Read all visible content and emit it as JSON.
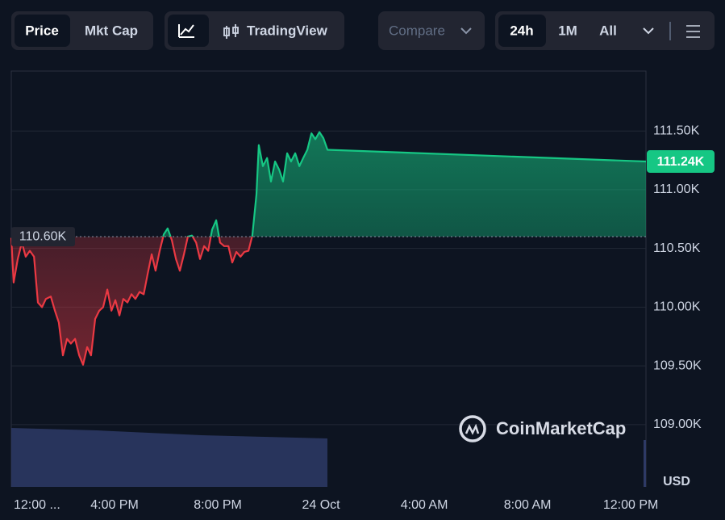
{
  "toolbar": {
    "tabs": [
      "Price",
      "Mkt Cap"
    ],
    "view": "TradingView",
    "compare": "Compare",
    "ranges": [
      "24h",
      "1M",
      "All"
    ]
  },
  "chart_data": {
    "type": "line",
    "x": [
      0,
      0.09,
      0.25,
      0.41,
      0.56,
      0.72,
      0.88,
      1.03,
      1.19,
      1.34,
      1.53,
      1.69,
      1.84,
      2,
      2.16,
      2.31,
      2.47,
      2.63,
      2.78,
      2.94,
      3.09,
      3.25,
      3.41,
      3.56,
      3.72,
      3.88,
      4.03,
      4.19,
      4.34,
      4.5,
      4.66,
      4.81,
      4.97,
      5.13,
      5.28,
      5.44,
      5.59,
      5.75,
      5.91,
      6.06,
      6.22,
      6.38,
      6.53,
      6.69,
      6.84,
      7,
      7.16,
      7.31,
      7.47,
      7.63,
      7.78,
      7.94,
      8.09,
      8.25,
      8.41,
      8.56,
      8.72,
      8.88,
      9.03,
      9.19,
      9.34,
      9.5,
      9.59,
      9.75,
      9.91,
      10.06,
      10.22,
      10.38,
      10.53,
      10.69,
      10.84,
      11,
      11.16,
      11.31,
      11.47,
      11.63,
      11.78,
      11.94,
      12.09,
      12.25,
      24.59
    ],
    "values": [
      110.59,
      110.21,
      110.41,
      110.55,
      110.43,
      110.48,
      110.43,
      110.04,
      110.0,
      110.07,
      110.09,
      109.97,
      109.87,
      109.59,
      109.73,
      109.69,
      109.73,
      109.59,
      109.51,
      109.66,
      109.59,
      109.9,
      109.97,
      110.0,
      110.15,
      109.97,
      110.06,
      109.93,
      110.07,
      110.04,
      110.11,
      110.07,
      110.13,
      110.11,
      110.28,
      110.45,
      110.31,
      110.48,
      110.62,
      110.67,
      110.57,
      110.41,
      110.31,
      110.45,
      110.6,
      110.61,
      110.55,
      110.41,
      110.52,
      110.48,
      110.66,
      110.74,
      110.55,
      110.52,
      110.52,
      110.38,
      110.47,
      110.43,
      110.47,
      110.48,
      110.61,
      110.96,
      111.38,
      111.2,
      111.27,
      111.07,
      111.24,
      111.17,
      111.07,
      111.31,
      111.24,
      111.31,
      111.2,
      111.27,
      111.34,
      111.48,
      111.43,
      111.49,
      111.44,
      111.34,
      111.24
    ],
    "color_up": "#16c784",
    "color_down": "#ea3943",
    "xlim": [
      0,
      24.59
    ],
    "xticks": [
      {
        "value": 0,
        "label": "12:00 ..."
      },
      {
        "value": 4,
        "label": "4:00 PM"
      },
      {
        "value": 8,
        "label": "8:00 PM"
      },
      {
        "value": 12,
        "label": "24 Oct"
      },
      {
        "value": 16,
        "label": "4:00 AM"
      },
      {
        "value": 20,
        "label": "8:00 AM"
      },
      {
        "value": 24,
        "label": "12:00 PM"
      }
    ],
    "ylim": [
      108.47,
      112.01
    ],
    "yticks": [
      {
        "value": 109,
        "label": "109.00K"
      },
      {
        "value": 109.5,
        "label": "109.50K"
      },
      {
        "value": 110,
        "label": "110.00K"
      },
      {
        "value": 110.5,
        "label": "110.50K"
      },
      {
        "value": 111,
        "label": "111.00K"
      },
      {
        "value": 111.5,
        "label": "111.50K"
      }
    ],
    "grid": true,
    "baseline": {
      "value": 110.6,
      "label": "110.60K"
    },
    "last_price": {
      "value": 111.24,
      "label": "111.24K"
    },
    "currency": "USD",
    "watermark": "CoinMarketCap"
  }
}
